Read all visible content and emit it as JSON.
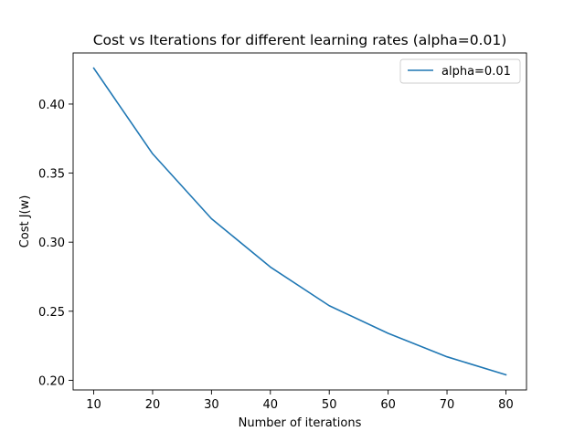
{
  "chart_data": {
    "type": "line",
    "title": "Cost vs Iterations for different learning rates (alpha=0.01)",
    "xlabel": "Number of iterations",
    "ylabel": "Cost J(w)",
    "x": [
      10,
      20,
      30,
      40,
      50,
      60,
      70,
      80
    ],
    "series": [
      {
        "name": "alpha=0.01",
        "color": "#1f77b4",
        "values": [
          0.426,
          0.364,
          0.317,
          0.282,
          0.254,
          0.234,
          0.217,
          0.204
        ]
      }
    ],
    "xlim": [
      6.5,
      83.5
    ],
    "ylim": [
      0.193,
      0.437
    ],
    "xticks": [
      10,
      20,
      30,
      40,
      50,
      60,
      70,
      80
    ],
    "xtick_labels": [
      "10",
      "20",
      "30",
      "40",
      "50",
      "60",
      "70",
      "80"
    ],
    "yticks": [
      0.2,
      0.25,
      0.3,
      0.35,
      0.4
    ],
    "ytick_labels": [
      "0.20",
      "0.25",
      "0.30",
      "0.35",
      "0.40"
    ],
    "grid": false,
    "legend_position": "top-right"
  }
}
